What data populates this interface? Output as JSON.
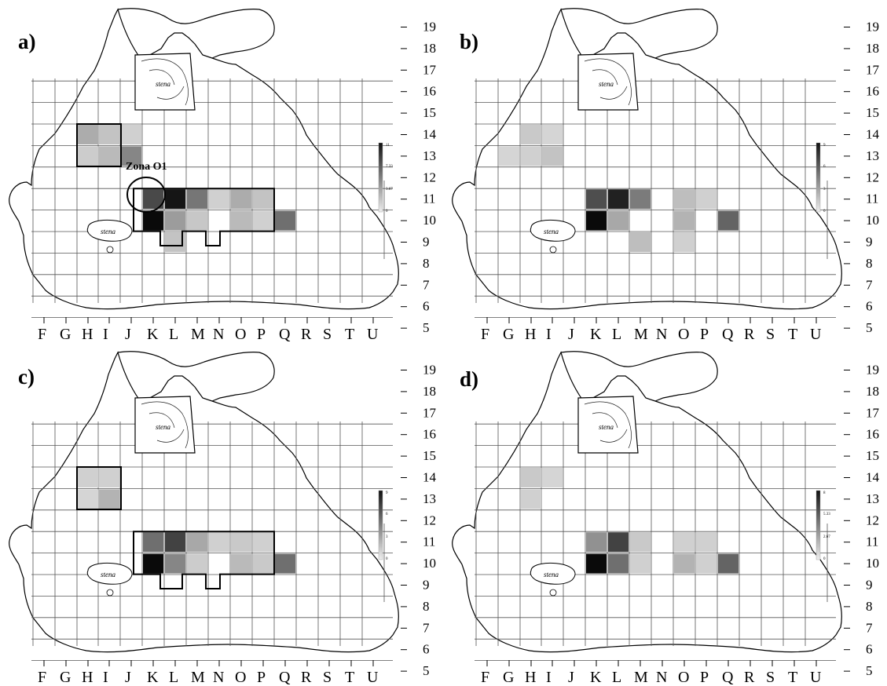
{
  "figure": {
    "columns": [
      "F",
      "G",
      "H",
      "I",
      "J",
      "K",
      "L",
      "M",
      "N",
      "O",
      "P",
      "Q",
      "R",
      "S",
      "T",
      "U"
    ],
    "rows": [
      "19",
      "18",
      "17",
      "16",
      "15",
      "14",
      "13",
      "12",
      "11",
      "10",
      "9",
      "8",
      "7",
      "6",
      "5"
    ],
    "colors": {
      "ink": "#000000",
      "grid": "#555555",
      "cell_dark": "#111111"
    },
    "panels": [
      {
        "id": "a",
        "label": "a)",
        "zone_label": "Zona O1",
        "stena_labels": [
          "stena",
          "stena"
        ],
        "scale": {
          "max": "11",
          "mid_high": "7.33",
          "mid_low": "3.67",
          "min": "0"
        },
        "cells": [
          {
            "col": "H",
            "row": "14",
            "v": 0.28
          },
          {
            "col": "I",
            "row": "14",
            "v": 0.18
          },
          {
            "col": "J",
            "row": "14",
            "v": 0.12
          },
          {
            "col": "H",
            "row": "13",
            "v": 0.14
          },
          {
            "col": "I",
            "row": "13",
            "v": 0.22
          },
          {
            "col": "J",
            "row": "13",
            "v": 0.45
          },
          {
            "col": "K",
            "row": "11",
            "v": 0.72
          },
          {
            "col": "L",
            "row": "11",
            "v": 0.95
          },
          {
            "col": "M",
            "row": "11",
            "v": 0.52
          },
          {
            "col": "N",
            "row": "11",
            "v": 0.12
          },
          {
            "col": "O",
            "row": "11",
            "v": 0.28
          },
          {
            "col": "P",
            "row": "11",
            "v": 0.18
          },
          {
            "col": "K",
            "row": "10",
            "v": 1.0
          },
          {
            "col": "L",
            "row": "10",
            "v": 0.35
          },
          {
            "col": "M",
            "row": "10",
            "v": 0.16
          },
          {
            "col": "O",
            "row": "10",
            "v": 0.22
          },
          {
            "col": "P",
            "row": "10",
            "v": 0.12
          },
          {
            "col": "Q",
            "row": "10",
            "v": 0.55
          },
          {
            "col": "L",
            "row": "9",
            "v": 0.18
          }
        ]
      },
      {
        "id": "b",
        "label": "b)",
        "stena_labels": [
          "stena",
          "stena"
        ],
        "scale": {
          "max": "9",
          "mid_high": "6",
          "mid_low": "3",
          "min": "0"
        },
        "cells": [
          {
            "col": "H",
            "row": "14",
            "v": 0.15
          },
          {
            "col": "I",
            "row": "14",
            "v": 0.1
          },
          {
            "col": "G",
            "row": "13",
            "v": 0.1
          },
          {
            "col": "H",
            "row": "13",
            "v": 0.12
          },
          {
            "col": "I",
            "row": "13",
            "v": 0.18
          },
          {
            "col": "K",
            "row": "11",
            "v": 0.7
          },
          {
            "col": "L",
            "row": "11",
            "v": 0.9
          },
          {
            "col": "M",
            "row": "11",
            "v": 0.5
          },
          {
            "col": "O",
            "row": "11",
            "v": 0.2
          },
          {
            "col": "P",
            "row": "11",
            "v": 0.12
          },
          {
            "col": "K",
            "row": "10",
            "v": 1.0
          },
          {
            "col": "L",
            "row": "10",
            "v": 0.3
          },
          {
            "col": "O",
            "row": "10",
            "v": 0.25
          },
          {
            "col": "Q",
            "row": "10",
            "v": 0.6
          },
          {
            "col": "M",
            "row": "9",
            "v": 0.2
          },
          {
            "col": "O",
            "row": "9",
            "v": 0.12
          }
        ]
      },
      {
        "id": "c",
        "label": "c)",
        "stena_labels": [
          "stena",
          "stena"
        ],
        "scale": {
          "max": "9",
          "mid_high": "6",
          "mid_low": "3",
          "min": "0"
        },
        "cells": [
          {
            "col": "H",
            "row": "14",
            "v": 0.12
          },
          {
            "col": "I",
            "row": "14",
            "v": 0.12
          },
          {
            "col": "H",
            "row": "13",
            "v": 0.1
          },
          {
            "col": "I",
            "row": "13",
            "v": 0.25
          },
          {
            "col": "K",
            "row": "11",
            "v": 0.55
          },
          {
            "col": "L",
            "row": "11",
            "v": 0.75
          },
          {
            "col": "M",
            "row": "11",
            "v": 0.3
          },
          {
            "col": "N",
            "row": "11",
            "v": 0.12
          },
          {
            "col": "O",
            "row": "11",
            "v": 0.15
          },
          {
            "col": "P",
            "row": "11",
            "v": 0.12
          },
          {
            "col": "K",
            "row": "10",
            "v": 1.0
          },
          {
            "col": "L",
            "row": "10",
            "v": 0.45
          },
          {
            "col": "M",
            "row": "10",
            "v": 0.14
          },
          {
            "col": "O",
            "row": "10",
            "v": 0.22
          },
          {
            "col": "P",
            "row": "10",
            "v": 0.15
          },
          {
            "col": "Q",
            "row": "10",
            "v": 0.55
          }
        ]
      },
      {
        "id": "d",
        "label": "d)",
        "stena_labels": [
          "stena",
          "stena"
        ],
        "scale": {
          "max": "8",
          "mid_high": "5.33",
          "mid_low": "2.67",
          "min": "0"
        },
        "cells": [
          {
            "col": "H",
            "row": "14",
            "v": 0.15
          },
          {
            "col": "I",
            "row": "14",
            "v": 0.1
          },
          {
            "col": "H",
            "row": "13",
            "v": 0.12
          },
          {
            "col": "K",
            "row": "11",
            "v": 0.4
          },
          {
            "col": "L",
            "row": "11",
            "v": 0.75
          },
          {
            "col": "M",
            "row": "11",
            "v": 0.15
          },
          {
            "col": "O",
            "row": "11",
            "v": 0.12
          },
          {
            "col": "P",
            "row": "11",
            "v": 0.12
          },
          {
            "col": "K",
            "row": "10",
            "v": 1.0
          },
          {
            "col": "L",
            "row": "10",
            "v": 0.55
          },
          {
            "col": "M",
            "row": "10",
            "v": 0.12
          },
          {
            "col": "O",
            "row": "10",
            "v": 0.25
          },
          {
            "col": "P",
            "row": "10",
            "v": 0.12
          },
          {
            "col": "Q",
            "row": "10",
            "v": 0.6
          }
        ]
      }
    ]
  }
}
